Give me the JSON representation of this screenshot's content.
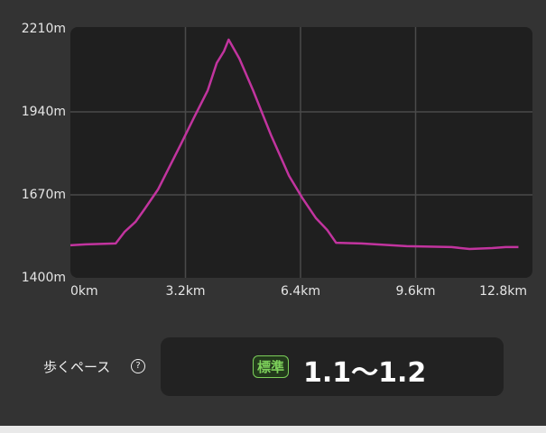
{
  "chart_data": {
    "type": "line",
    "x": [
      0,
      0.43,
      1.26,
      1.51,
      1.81,
      2.06,
      2.44,
      2.69,
      3.07,
      3.44,
      3.82,
      4.07,
      4.27,
      4.4,
      4.7,
      5.08,
      5.58,
      6.08,
      6.46,
      6.83,
      7.14,
      7.39,
      8.09,
      9.35,
      10.6,
      11.1,
      11.73,
      12.11,
      12.46
    ],
    "series": [
      {
        "color": "#c2349f",
        "values": [
          1506,
          1509,
          1512,
          1550,
          1582,
          1623,
          1688,
          1746,
          1834,
          1922,
          2010,
          2099,
          2137,
          2175,
          2113,
          2010,
          1864,
          1732,
          1658,
          1594,
          1556,
          1514,
          1512,
          1503,
          1500,
          1494,
          1497,
          1500,
          1500
        ]
      }
    ],
    "xlim": [
      0,
      12.85
    ],
    "xticks": [
      {
        "value": 0,
        "label": "0km"
      },
      {
        "value": 3.2,
        "label": "3.2km"
      },
      {
        "value": 6.4,
        "label": "6.4km"
      },
      {
        "value": 9.6,
        "label": "9.6km"
      },
      {
        "value": 12.8,
        "label": "12.8km"
      }
    ],
    "ylim": [
      1400,
      2210
    ],
    "yticks": [
      {
        "value": 1400,
        "label": "1400m"
      },
      {
        "value": 1670,
        "label": "1670m"
      },
      {
        "value": 1940,
        "label": "1940m"
      },
      {
        "value": 2210,
        "label": "2210m"
      }
    ],
    "grid": true
  },
  "pace": {
    "label": "歩くペース",
    "help": "?",
    "badge": "標準",
    "value": "1.1〜1.2"
  }
}
